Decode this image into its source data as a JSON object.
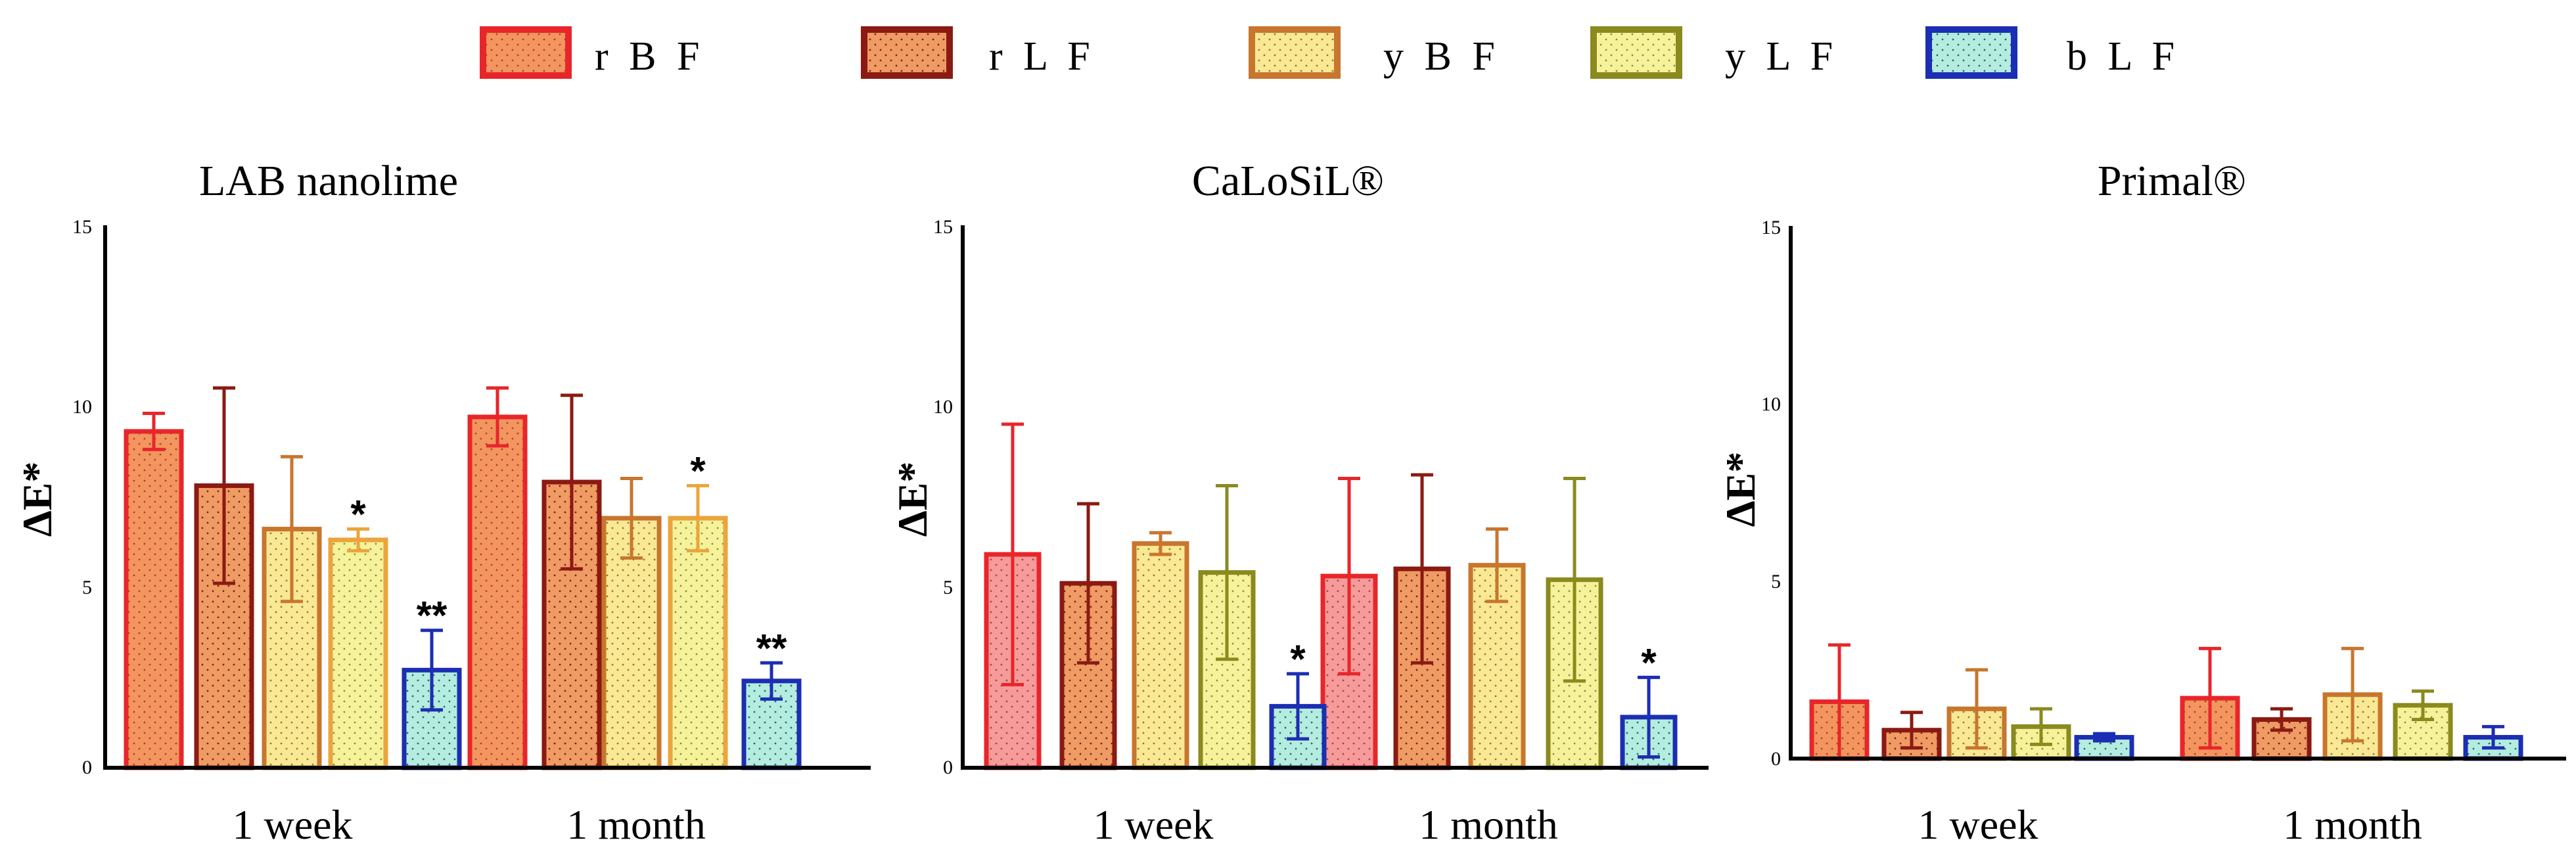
{
  "chart_data": [
    {
      "type": "bar",
      "title": "LAB nanolime",
      "ylabel": "ΔE*",
      "xlabel": "",
      "ylim": [
        0,
        15
      ],
      "yticks": [
        "0",
        "5",
        "10",
        "15"
      ],
      "categories": [
        "1 week",
        "1 month"
      ],
      "series": [
        {
          "name": "rBF",
          "values": [
            9.3,
            9.7
          ],
          "errors": [
            0.5,
            0.8
          ],
          "annotations": [
            "",
            ""
          ]
        },
        {
          "name": "rLF",
          "values": [
            7.8,
            7.9
          ],
          "errors": [
            2.7,
            2.4
          ],
          "annotations": [
            "",
            ""
          ]
        },
        {
          "name": "yBF",
          "values": [
            6.6,
            6.9
          ],
          "errors": [
            2.0,
            1.1
          ],
          "annotations": [
            "",
            ""
          ]
        },
        {
          "name": "yLF",
          "values": [
            6.3,
            6.9
          ],
          "errors": [
            0.3,
            0.9
          ],
          "annotations": [
            "*",
            "*"
          ]
        },
        {
          "name": "bLF",
          "values": [
            2.7,
            2.4
          ],
          "errors": [
            1.1,
            0.5
          ],
          "annotations": [
            "**",
            "**"
          ]
        }
      ]
    },
    {
      "type": "bar",
      "title": "CaLoSiL®",
      "ylabel": "ΔE*",
      "xlabel": "",
      "ylim": [
        0,
        15
      ],
      "yticks": [
        "0",
        "5",
        "10",
        "15"
      ],
      "categories": [
        "1 week",
        "1 month"
      ],
      "series": [
        {
          "name": "rBF",
          "values": [
            5.9,
            5.3
          ],
          "errors": [
            3.6,
            2.7
          ],
          "annotations": [
            "",
            ""
          ]
        },
        {
          "name": "rLF",
          "values": [
            5.1,
            5.5
          ],
          "errors": [
            2.2,
            2.6
          ],
          "annotations": [
            "",
            ""
          ]
        },
        {
          "name": "yBF",
          "values": [
            6.2,
            5.6
          ],
          "errors": [
            0.3,
            1.0
          ],
          "annotations": [
            "",
            ""
          ]
        },
        {
          "name": "yLF",
          "values": [
            5.4,
            5.2
          ],
          "errors": [
            2.4,
            2.8
          ],
          "annotations": [
            "",
            ""
          ]
        },
        {
          "name": "bLF",
          "values": [
            1.7,
            1.4
          ],
          "errors": [
            0.9,
            1.1
          ],
          "annotations": [
            "*",
            "*"
          ]
        }
      ]
    },
    {
      "type": "bar",
      "title": "Primal®",
      "ylabel": "ΔE*",
      "xlabel": "",
      "ylim": [
        0,
        15
      ],
      "yticks": [
        "0",
        "5",
        "10",
        "15"
      ],
      "categories": [
        "1 week",
        "1 month"
      ],
      "series": [
        {
          "name": "rBF",
          "values": [
            1.6,
            1.7
          ],
          "errors": [
            1.6,
            1.4
          ],
          "annotations": [
            "",
            ""
          ]
        },
        {
          "name": "rLF",
          "values": [
            0.8,
            1.1
          ],
          "errors": [
            0.5,
            0.3
          ],
          "annotations": [
            "",
            ""
          ]
        },
        {
          "name": "yBF",
          "values": [
            1.4,
            1.8
          ],
          "errors": [
            1.1,
            1.3
          ],
          "annotations": [
            "",
            ""
          ]
        },
        {
          "name": "yLF",
          "values": [
            0.9,
            1.5
          ],
          "errors": [
            0.5,
            0.4
          ],
          "annotations": [
            "",
            ""
          ]
        },
        {
          "name": "bLF",
          "values": [
            0.6,
            0.6
          ],
          "errors": [
            0.1,
            0.3
          ],
          "annotations": [
            "",
            ""
          ]
        }
      ]
    }
  ],
  "legend": {
    "placement": "top-center",
    "items": [
      {
        "label": "r B F",
        "series": "rBF"
      },
      {
        "label": "r L F",
        "series": "rLF"
      },
      {
        "label": "y B F",
        "series": "yBF"
      },
      {
        "label": "y L F",
        "series": "yLF"
      },
      {
        "label": "b L F",
        "series": "bLF"
      }
    ]
  },
  "colors": {
    "rBF": {
      "edge": "#e8262a",
      "fill": "#f4955f",
      "fill_light": "#f79a9a"
    },
    "rLF": {
      "edge": "#8b1a12",
      "fill": "#f09a64"
    },
    "yBF": {
      "edge": "#c8762e",
      "fill": "#fbe894"
    },
    "yLF": {
      "edge": "#8a8a1e",
      "fill": "#f6f29a"
    },
    "yLF_nanolime_edge": "#eba53c",
    "bLF": {
      "edge": "#1c2eb3",
      "fill": "#b4ecdf"
    }
  }
}
